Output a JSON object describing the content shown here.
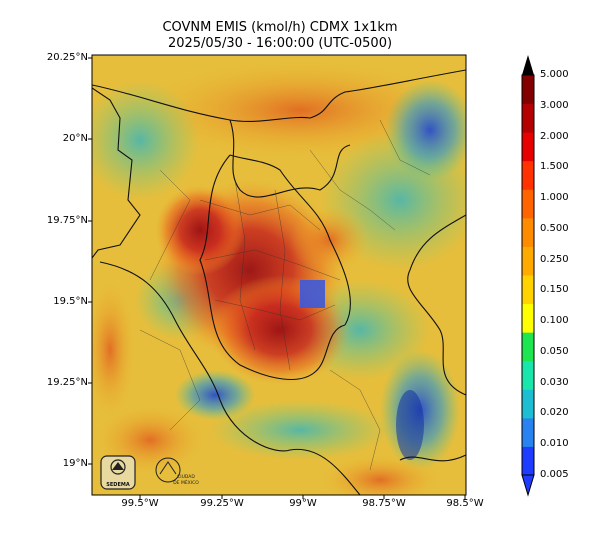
{
  "title": {
    "line1": "COVNM EMIS (kmol/h) CDMX 1x1km",
    "line2": "2025/05/30 - 16:00:00 (UTC-0500)"
  },
  "axes": {
    "y_ticks": [
      {
        "label": "20.25°N",
        "value": 20.25
      },
      {
        "label": "20°N",
        "value": 20.0
      },
      {
        "label": "19.75°N",
        "value": 19.75
      },
      {
        "label": "19.5°N",
        "value": 19.5
      },
      {
        "label": "19.25°N",
        "value": 19.25
      },
      {
        "label": "19°N",
        "value": 19.0
      }
    ],
    "x_ticks": [
      {
        "label": "99.5°W",
        "value": -99.5
      },
      {
        "label": "99.25°W",
        "value": -99.25
      },
      {
        "label": "99°W",
        "value": -99.0
      },
      {
        "label": "98.75°W",
        "value": -98.75
      },
      {
        "label": "98.5°W",
        "value": -98.5
      }
    ],
    "lon_range": [
      -99.65,
      -98.5
    ],
    "lat_range": [
      18.9,
      20.25
    ]
  },
  "colorbar": {
    "labels": [
      "5.000",
      "3.000",
      "2.000",
      "1.500",
      "1.000",
      "0.500",
      "0.250",
      "0.150",
      "0.100",
      "0.050",
      "0.030",
      "0.020",
      "0.010",
      "0.005"
    ],
    "colors": [
      "#1e3cff",
      "#2882f0",
      "#1ebed2",
      "#19e6aa",
      "#1ee650",
      "#ffff00",
      "#ffd200",
      "#ffaa00",
      "#ff8c00",
      "#ff6400",
      "#ff3200",
      "#e60000",
      "#b40000",
      "#820000"
    ],
    "extend": "both"
  },
  "logos": [
    {
      "text": "SEDEMA"
    },
    {
      "text": "CIUDAD DE MÉXICO"
    }
  ]
}
